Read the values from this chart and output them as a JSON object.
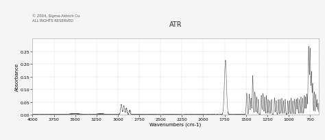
{
  "title": "ATR",
  "copyright": "© 2004, Sigma-Aldrich Co.\nALL RIGHTS RESERVED",
  "xlabel": "Wavenumbers (cm-1)",
  "ylabel": "Absorbance",
  "xlim": [
    4000,
    650
  ],
  "ylim": [
    0.0,
    0.3
  ],
  "yticks": [
    0.0,
    0.05,
    0.1,
    0.15,
    0.2,
    0.25
  ],
  "xticks": [
    4000,
    3750,
    3500,
    3250,
    3000,
    2750,
    2500,
    2250,
    2000,
    1750,
    1500,
    1250,
    1000,
    750
  ],
  "background_color": "#f5f5f5",
  "plot_bg_color": "#ffffff",
  "line_color": "#555555",
  "grid_color": "#cccccc"
}
